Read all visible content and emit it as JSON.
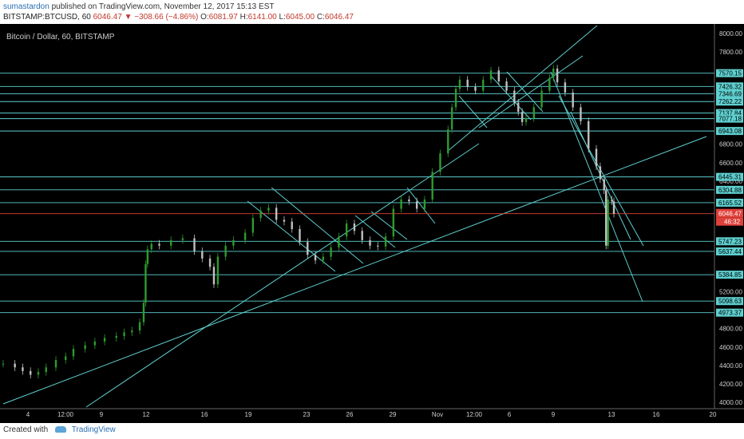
{
  "header": {
    "author": "sumastardon",
    "published_text": "published on TradingView.com, November 12, 2017 15:13 EST",
    "symbol": "BITSTAMP:BTCUSD, 60",
    "last": "6046.47",
    "change": "−308.66 (−4.86%)",
    "o_label": "O:",
    "o": "6081.97",
    "h_label": "H:",
    "h": "6141.00",
    "l_label": "L:",
    "l": "6045.00",
    "c_label": "C:",
    "c": "6046.47"
  },
  "footer": {
    "created": "Created with",
    "brand": "TradingView"
  },
  "colors": {
    "background": "#000000",
    "line": "#5fd0d0",
    "up": "#2e9b2e",
    "down": "#c0c0c0",
    "price": "#e0403a"
  },
  "chart_data": {
    "type": "line",
    "title": "Bitcoin / Dollar, 60, BITSTAMP",
    "price_axis_ticks": [
      "8000.00",
      "7800.00",
      "6800.00",
      "6600.00",
      "6400.00",
      "5200.00",
      "4800.00",
      "4600.00",
      "4400.00",
      "4200.00",
      "4000.00"
    ],
    "time_axis_ticks": [
      "4",
      "12:00",
      "9",
      "12",
      "16",
      "19",
      "23",
      "26",
      "29",
      "Nov",
      "12:00",
      "6",
      "9",
      "13",
      "16",
      "20"
    ],
    "current_price_label": "6046.47",
    "countdown_label": "46:32",
    "level_labels": [
      "7570.15",
      "7426.32",
      "7346.69",
      "7262.22",
      "7137.84",
      "7077.18",
      "6943.08",
      "6445.31",
      "6304.88",
      "6165.52",
      "5747.23",
      "5637.44",
      "5384.85",
      "5098.63",
      "4973.37"
    ],
    "ylim": [
      3950,
      8100
    ],
    "grid": false,
    "price_path": [
      [
        0,
        4420
      ],
      [
        6,
        4380
      ],
      [
        10,
        4340
      ],
      [
        14,
        4300
      ],
      [
        18,
        4330
      ],
      [
        22,
        4380
      ],
      [
        27,
        4460
      ],
      [
        32,
        4500
      ],
      [
        36,
        4580
      ],
      [
        42,
        4620
      ],
      [
        47,
        4660
      ],
      [
        52,
        4700
      ],
      [
        58,
        4720
      ],
      [
        62,
        4760
      ],
      [
        66,
        4780
      ],
      [
        70,
        4870
      ],
      [
        72,
        5080
      ],
      [
        73,
        5500
      ],
      [
        74,
        5660
      ],
      [
        76,
        5720
      ],
      [
        80,
        5700
      ],
      [
        86,
        5760
      ],
      [
        92,
        5780
      ],
      [
        98,
        5640
      ],
      [
        102,
        5560
      ],
      [
        106,
        5470
      ],
      [
        108,
        5280
      ],
      [
        110,
        5580
      ],
      [
        114,
        5700
      ],
      [
        118,
        5760
      ],
      [
        124,
        5840
      ],
      [
        128,
        6000
      ],
      [
        132,
        6080
      ],
      [
        136,
        6110
      ],
      [
        140,
        5980
      ],
      [
        144,
        5960
      ],
      [
        148,
        5880
      ],
      [
        152,
        5740
      ],
      [
        156,
        5600
      ],
      [
        160,
        5540
      ],
      [
        164,
        5580
      ],
      [
        168,
        5680
      ],
      [
        172,
        5800
      ],
      [
        176,
        5940
      ],
      [
        180,
        5860
      ],
      [
        184,
        5760
      ],
      [
        188,
        5700
      ],
      [
        192,
        5690
      ],
      [
        196,
        5800
      ],
      [
        200,
        6100
      ],
      [
        204,
        6200
      ],
      [
        208,
        6180
      ],
      [
        212,
        6100
      ],
      [
        216,
        6200
      ],
      [
        220,
        6500
      ],
      [
        224,
        6700
      ],
      [
        228,
        6960
      ],
      [
        230,
        7200
      ],
      [
        232,
        7400
      ],
      [
        234,
        7500
      ],
      [
        238,
        7420
      ],
      [
        242,
        7380
      ],
      [
        246,
        7500
      ],
      [
        250,
        7600
      ],
      [
        254,
        7480
      ],
      [
        258,
        7380
      ],
      [
        262,
        7250
      ],
      [
        264,
        7150
      ],
      [
        266,
        7040
      ],
      [
        268,
        7080
      ],
      [
        272,
        7200
      ],
      [
        276,
        7380
      ],
      [
        280,
        7520
      ],
      [
        282,
        7620
      ],
      [
        284,
        7470
      ],
      [
        288,
        7360
      ],
      [
        292,
        7200
      ],
      [
        296,
        7050
      ],
      [
        300,
        6750
      ],
      [
        304,
        6560
      ],
      [
        306,
        6420
      ],
      [
        308,
        6300
      ],
      [
        309,
        5700
      ],
      [
        310,
        6200
      ],
      [
        312,
        6180
      ],
      [
        313,
        6046
      ]
    ]
  }
}
